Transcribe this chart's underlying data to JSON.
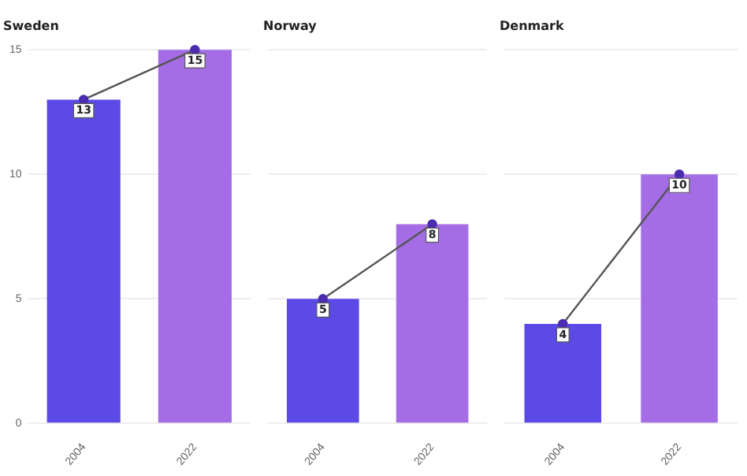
{
  "chart_data": [
    {
      "type": "bar",
      "title": "Sweden",
      "categories": [
        "2004",
        "2022"
      ],
      "series": [
        {
          "colors": [
            "#5b4ae6",
            "#a46de6"
          ],
          "values": [
            13,
            15
          ],
          "value_labels": [
            "13",
            "15"
          ]
        },
        {
          "type": "line",
          "color": "#555555",
          "values": [
            13,
            15
          ]
        }
      ],
      "ylim": [
        0,
        15
      ],
      "yticks": [
        0,
        5,
        10,
        15
      ],
      "grid": "y",
      "marker": "circle"
    },
    {
      "type": "bar",
      "title": "Norway",
      "categories": [
        "2004",
        "2022"
      ],
      "series": [
        {
          "colors": [
            "#5b4ae6",
            "#a46de6"
          ],
          "values": [
            5,
            8
          ],
          "value_labels": [
            "5",
            "8"
          ]
        },
        {
          "type": "line",
          "color": "#555555",
          "values": [
            5,
            8
          ]
        }
      ],
      "ylim": [
        0,
        15
      ],
      "yticks": [
        0,
        5,
        10,
        15
      ],
      "grid": "y",
      "marker": "circle",
      "tick_labels": "x"
    },
    {
      "type": "bar",
      "title": "Denmark",
      "categories": [
        "2004",
        "2022"
      ],
      "series": [
        {
          "colors": [
            "#5b4ae6",
            "#a46de6"
          ],
          "values": [
            4,
            10
          ],
          "value_labels": [
            "4",
            "10"
          ]
        },
        {
          "type": "line",
          "color": "#555555",
          "values": [
            4,
            10
          ]
        }
      ],
      "ylim": [
        0,
        15
      ],
      "yticks": [
        0,
        5,
        10,
        15
      ],
      "grid": "y",
      "marker": "circle",
      "tick_labels": "x"
    }
  ]
}
